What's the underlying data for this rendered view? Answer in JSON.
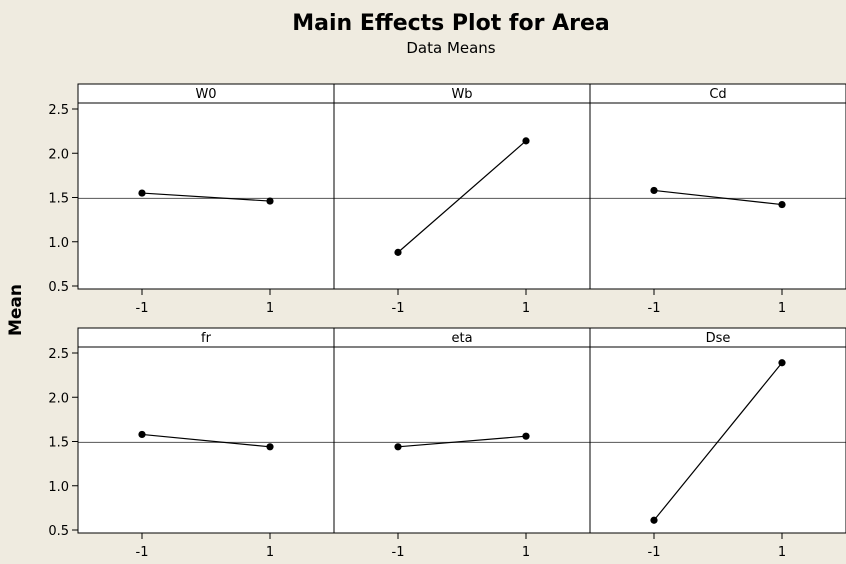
{
  "title": "Main Effects Plot for Area",
  "subtitle": "Data Means",
  "ylabel": "Mean",
  "chart_data": {
    "type": "line",
    "title": "Main Effects Plot for Area",
    "subtitle": "Data Means",
    "ylabel": "Mean",
    "ylim": [
      0.5,
      2.55
    ],
    "yticks": [
      "0.5",
      "1.0",
      "1.5",
      "2.0",
      "2.5"
    ],
    "xticks": [
      "-1",
      "1"
    ],
    "reference_line": 1.49,
    "grid": false,
    "panels": [
      {
        "name": "W0",
        "x": [
          -1,
          1
        ],
        "y": [
          1.55,
          1.46
        ]
      },
      {
        "name": "Wb",
        "x": [
          -1,
          1
        ],
        "y": [
          0.88,
          2.14
        ]
      },
      {
        "name": "Cd",
        "x": [
          -1,
          1
        ],
        "y": [
          1.58,
          1.42
        ]
      },
      {
        "name": "fr",
        "x": [
          -1,
          1
        ],
        "y": [
          1.58,
          1.44
        ]
      },
      {
        "name": "eta",
        "x": [
          -1,
          1
        ],
        "y": [
          1.44,
          1.56
        ]
      },
      {
        "name": "Dse",
        "x": [
          -1,
          1
        ],
        "y": [
          0.61,
          2.39
        ]
      }
    ]
  }
}
